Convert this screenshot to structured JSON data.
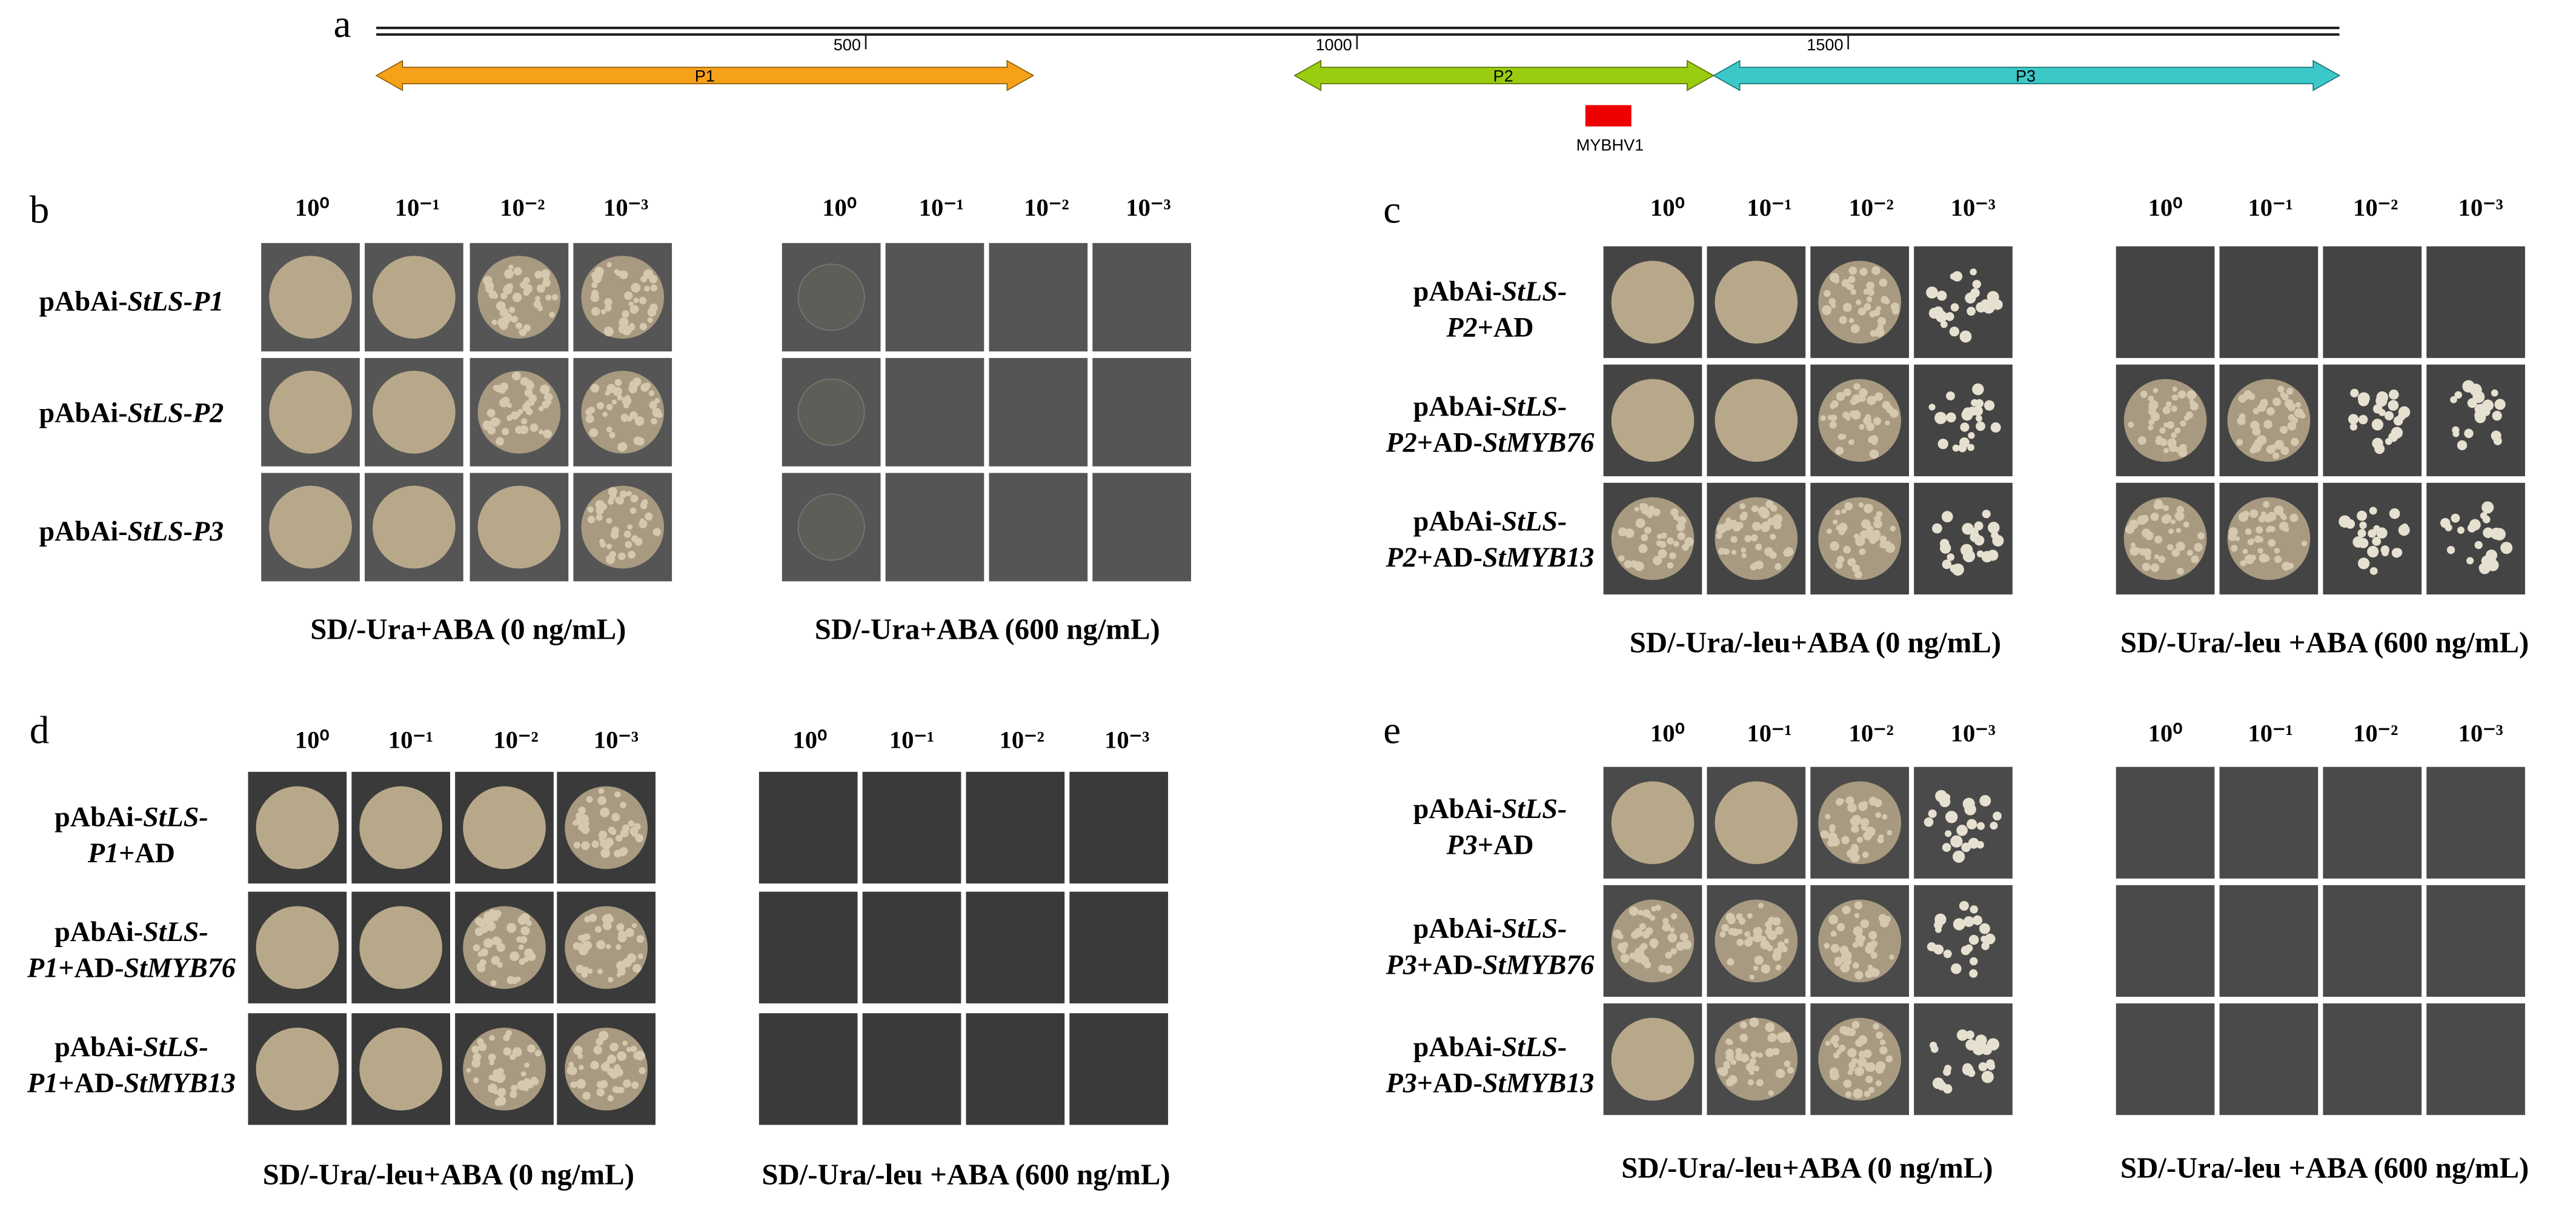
{
  "panel_a": {
    "label": "a",
    "scale_ticks": [
      500,
      1000,
      1500
    ],
    "fragments": [
      "P1",
      "P2",
      "P3"
    ],
    "site": "MYBHV1"
  },
  "panels": [
    {
      "label": "b",
      "dilutions": [
        "10⁰",
        "10⁻¹",
        "10⁻²",
        "10⁻³"
      ],
      "rows": [
        [
          [
            {
              "text": "pAbAi-",
              "italic": false
            },
            {
              "text": "StLS-P1",
              "italic": true
            }
          ]
        ],
        [
          [
            {
              "text": "pAbAi-",
              "italic": false
            },
            {
              "text": "StLS-P2",
              "italic": true
            }
          ]
        ],
        [
          [
            {
              "text": "pAbAi-",
              "italic": false
            },
            {
              "text": "StLS-P3",
              "italic": true
            }
          ]
        ]
      ],
      "conditions": [
        "SD/-Ura+ABA (0 ng/mL)",
        "SD/-Ura+ABA (600 ng/mL)"
      ]
    },
    {
      "label": "c",
      "dilutions": [
        "10⁰",
        "10⁻¹",
        "10⁻²",
        "10⁻³"
      ],
      "rows": [
        [
          [
            {
              "text": "pAbAi-",
              "italic": false
            },
            {
              "text": "StLS-",
              "italic": true
            }
          ],
          [
            {
              "text": "P2",
              "italic": true
            },
            {
              "text": "+AD",
              "italic": false
            }
          ]
        ],
        [
          [
            {
              "text": "pAbAi-",
              "italic": false
            },
            {
              "text": "StLS-",
              "italic": true
            }
          ],
          [
            {
              "text": "P2",
              "italic": true
            },
            {
              "text": "+AD-",
              "italic": false
            },
            {
              "text": "StMYB76",
              "italic": true
            }
          ]
        ],
        [
          [
            {
              "text": "pAbAi-",
              "italic": false
            },
            {
              "text": "StLS-",
              "italic": true
            }
          ],
          [
            {
              "text": "P2",
              "italic": true
            },
            {
              "text": "+AD-",
              "italic": false
            },
            {
              "text": "StMYB13",
              "italic": true
            }
          ]
        ]
      ],
      "conditions": [
        "SD/-Ura/-leu+ABA (0 ng/mL)",
        "SD/-Ura/-leu +ABA (600 ng/mL)"
      ]
    },
    {
      "label": "d",
      "dilutions": [
        "10⁰",
        "10⁻¹",
        "10⁻²",
        "10⁻³"
      ],
      "rows": [
        [
          [
            {
              "text": "pAbAi-",
              "italic": false
            },
            {
              "text": "StLS-",
              "italic": true
            }
          ],
          [
            {
              "text": "P1",
              "italic": true
            },
            {
              "text": "+AD",
              "italic": false
            }
          ]
        ],
        [
          [
            {
              "text": "pAbAi-",
              "italic": false
            },
            {
              "text": "StLS-",
              "italic": true
            }
          ],
          [
            {
              "text": "P1",
              "italic": true
            },
            {
              "text": "+AD-",
              "italic": false
            },
            {
              "text": "StMYB76",
              "italic": true
            }
          ]
        ],
        [
          [
            {
              "text": "pAbAi-",
              "italic": false
            },
            {
              "text": "StLS-",
              "italic": true
            }
          ],
          [
            {
              "text": "P1",
              "italic": true
            },
            {
              "text": "+AD-",
              "italic": false
            },
            {
              "text": "StMYB13",
              "italic": true
            }
          ]
        ]
      ],
      "conditions": [
        "SD/-Ura/-leu+ABA (0 ng/mL)",
        "SD/-Ura/-leu +ABA (600 ng/mL)"
      ]
    },
    {
      "label": "e",
      "dilutions": [
        "10⁰",
        "10⁻¹",
        "10⁻²",
        "10⁻³"
      ],
      "rows": [
        [
          [
            {
              "text": "pAbAi-",
              "italic": false
            },
            {
              "text": "StLS-",
              "italic": true
            }
          ],
          [
            {
              "text": "P3",
              "italic": true
            },
            {
              "text": "+AD",
              "italic": false
            }
          ]
        ],
        [
          [
            {
              "text": "pAbAi-",
              "italic": false
            },
            {
              "text": "StLS-",
              "italic": true
            }
          ],
          [
            {
              "text": "P3",
              "italic": true
            },
            {
              "text": "+AD-",
              "italic": false
            },
            {
              "text": "StMYB76",
              "italic": true
            }
          ]
        ],
        [
          [
            {
              "text": "pAbAi-",
              "italic": false
            },
            {
              "text": "StLS-",
              "italic": true
            }
          ],
          [
            {
              "text": "P3",
              "italic": true
            },
            {
              "text": "+AD-",
              "italic": false
            },
            {
              "text": "StMYB13",
              "italic": true
            }
          ]
        ]
      ],
      "conditions": [
        "SD/-Ura/-leu+ABA (0 ng/mL)",
        "SD/-Ura/-leu +ABA (600 ng/mL)"
      ]
    }
  ]
}
